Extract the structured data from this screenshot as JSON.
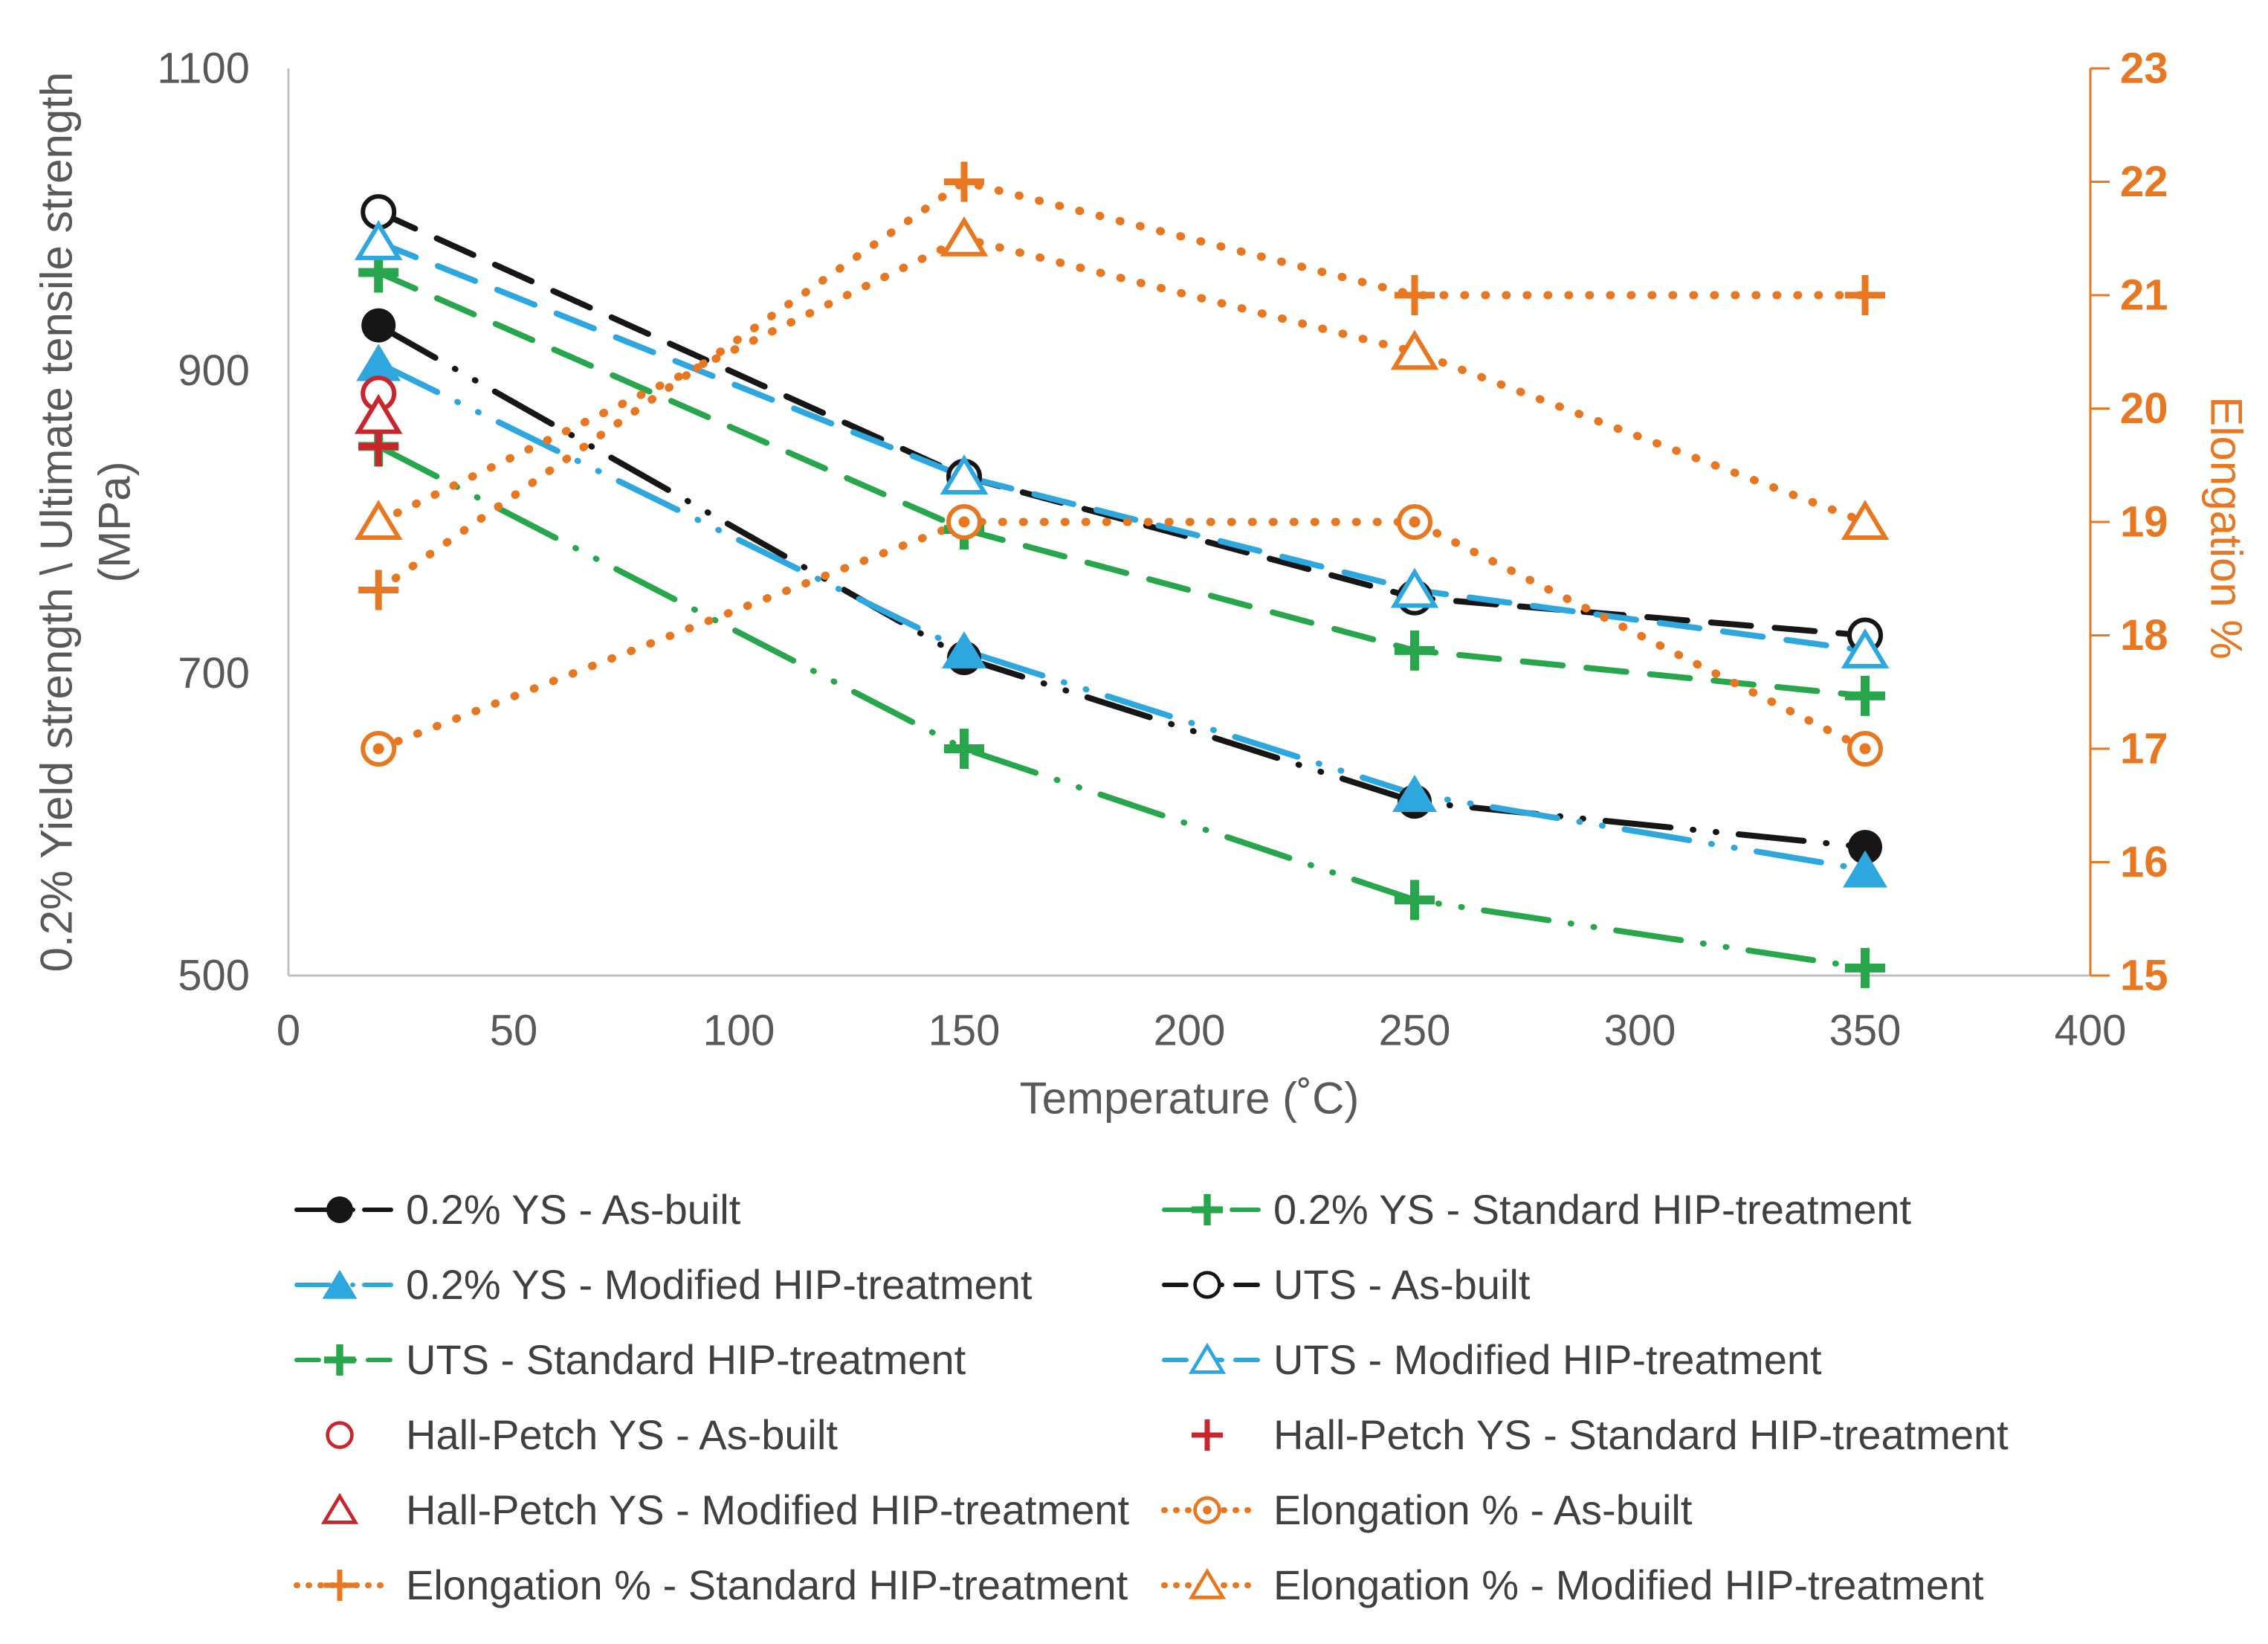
{
  "figure": {
    "background": "#ffffff",
    "x_axis": {
      "title": "Temperature (˚C)",
      "min": 0,
      "max": 400,
      "ticks": [
        0,
        50,
        100,
        150,
        200,
        250,
        300,
        350,
        400
      ],
      "text_color": "#595959",
      "line_color": "#bfbfbf"
    },
    "y_left": {
      "title_line1": "0.2% Yield strength \\ Ultimate tensile strength",
      "title_line2": "(MPa)",
      "min": 500,
      "max": 1100,
      "ticks": [
        500,
        700,
        900,
        1100
      ],
      "text_color": "#595959",
      "line_color": "#bfbfbf"
    },
    "y_right": {
      "title": "Elongation %",
      "min": 15,
      "max": 23,
      "ticks": [
        15,
        16,
        17,
        18,
        19,
        20,
        21,
        22,
        23
      ],
      "color": "#e87722"
    }
  },
  "chart_data": {
    "type": "line",
    "x": [
      20,
      150,
      250,
      350
    ],
    "xlabel": "Temperature (˚C)",
    "ylabel_left": "0.2% Yield strength \\ Ultimate tensile strength (MPa)",
    "ylabel_right": "Elongation %",
    "ylim_left": [
      500,
      1100
    ],
    "ylim_right": [
      15,
      23
    ],
    "xlim": [
      0,
      400
    ],
    "grid": false,
    "legend_position": "bottom",
    "series": [
      {
        "name": "0.2% YS - As-built",
        "color": "#161616",
        "axis": "left",
        "line": "dashdotdot",
        "marker": "circle-filled",
        "x": [
          20,
          150,
          250,
          350
        ],
        "values": [
          930,
          710,
          615,
          585
        ]
      },
      {
        "name": "0.2% YS - Standard HIP-treatment",
        "color": "#27a64b",
        "axis": "left",
        "line": "dashdotdot",
        "marker": "plus-thick",
        "x": [
          20,
          150,
          250,
          350
        ],
        "values": [
          850,
          650,
          550,
          505
        ]
      },
      {
        "name": "0.2% YS - Modified HIP-treatment",
        "color": "#2ea6de",
        "axis": "left",
        "line": "dashdotdot",
        "marker": "triangle-filled",
        "x": [
          20,
          150,
          250,
          350
        ],
        "values": [
          905,
          715,
          620,
          570
        ]
      },
      {
        "name": "UTS - As-built",
        "color": "#161616",
        "axis": "left",
        "line": "dash",
        "marker": "circle-open",
        "x": [
          20,
          150,
          250,
          350
        ],
        "values": [
          1005,
          830,
          750,
          725
        ]
      },
      {
        "name": "UTS - Standard HIP-treatment",
        "color": "#27a64b",
        "axis": "left",
        "line": "dash",
        "marker": "plus-thick",
        "x": [
          20,
          150,
          250,
          350
        ],
        "values": [
          965,
          795,
          715,
          685
        ]
      },
      {
        "name": "UTS - Modified HIP-treatment",
        "color": "#2ea6de",
        "axis": "left",
        "line": "dash",
        "marker": "triangle-open",
        "x": [
          20,
          150,
          250,
          350
        ],
        "values": [
          985,
          830,
          755,
          715
        ]
      },
      {
        "name": "Hall-Petch YS - As-built",
        "color": "#c9252d",
        "axis": "left",
        "line": "none",
        "marker": "circle-open",
        "x": [
          20
        ],
        "values": [
          885
        ]
      },
      {
        "name": "Hall-Petch YS - Standard HIP-treatment",
        "color": "#c9252d",
        "axis": "left",
        "line": "none",
        "marker": "plus",
        "x": [
          20
        ],
        "values": [
          850
        ]
      },
      {
        "name": "Hall-Petch YS - Modified HIP-treatment",
        "color": "#c9252d",
        "axis": "left",
        "line": "none",
        "marker": "triangle-open",
        "x": [
          20
        ],
        "values": [
          870
        ]
      },
      {
        "name": "Elongation % - As-built",
        "color": "#e87722",
        "axis": "right",
        "line": "dot",
        "marker": "circle-dot",
        "x": [
          20,
          150,
          250,
          350
        ],
        "values": [
          17.0,
          19.0,
          19.0,
          17.0
        ]
      },
      {
        "name": "Elongation % - Standard HIP-treatment",
        "color": "#e87722",
        "axis": "right",
        "line": "dot",
        "marker": "plus",
        "x": [
          20,
          150,
          250,
          350
        ],
        "values": [
          18.4,
          22.0,
          21.0,
          21.0
        ]
      },
      {
        "name": "Elongation % - Modified HIP-treatment",
        "color": "#e87722",
        "axis": "right",
        "line": "dot",
        "marker": "triangle-open",
        "x": [
          20,
          150,
          250,
          350
        ],
        "values": [
          19.0,
          21.5,
          20.5,
          19.0
        ]
      }
    ]
  },
  "legend": {
    "columns": 2,
    "order": [
      0,
      1,
      2,
      3,
      4,
      5,
      6,
      7,
      8,
      9,
      10,
      11
    ]
  }
}
